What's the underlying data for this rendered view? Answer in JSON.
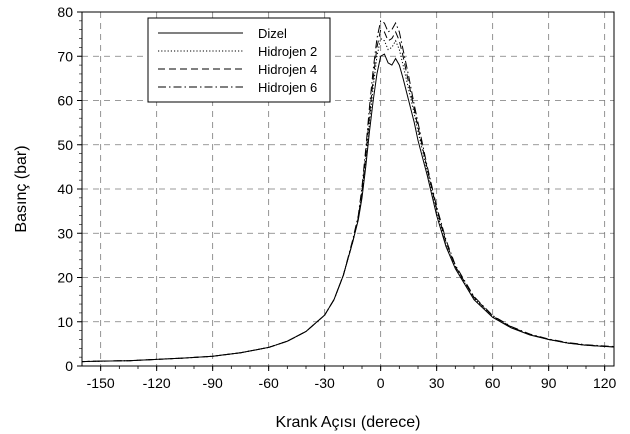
{
  "chart_data": {
    "type": "line",
    "title": "",
    "xlabel": "Krank Açısı (derece)",
    "ylabel": "Basınç (bar)",
    "xlim": [
      -160,
      125
    ],
    "ylim": [
      0,
      80
    ],
    "xticks": [
      -150,
      -120,
      -90,
      -60,
      -30,
      0,
      30,
      60,
      90,
      120
    ],
    "yticks": [
      0,
      10,
      20,
      30,
      40,
      50,
      60,
      70,
      80
    ],
    "grid": true,
    "legend_position": "top-left",
    "series": [
      {
        "name": "Dizel",
        "style": "solid",
        "x": [
          -160,
          -150,
          -135,
          -120,
          -105,
          -90,
          -75,
          -60,
          -50,
          -40,
          -30,
          -25,
          -20,
          -15,
          -12,
          -10,
          -8,
          -6,
          -4,
          -2,
          0,
          2,
          4,
          6,
          8,
          10,
          12,
          15,
          18,
          20,
          25,
          30,
          35,
          40,
          50,
          60,
          70,
          80,
          90,
          100,
          110,
          125
        ],
        "y": [
          1.0,
          1.1,
          1.2,
          1.5,
          1.8,
          2.2,
          3.0,
          4.2,
          5.6,
          7.8,
          11.5,
          15.0,
          20.5,
          28.0,
          33.0,
          38.0,
          45.0,
          53.0,
          60.0,
          66.0,
          70.0,
          70.5,
          68.5,
          68.0,
          69.5,
          68.0,
          65.0,
          60.0,
          55.0,
          51.0,
          43.0,
          34.0,
          27.0,
          22.0,
          15.0,
          11.0,
          8.6,
          7.0,
          6.0,
          5.2,
          4.7,
          4.3
        ]
      },
      {
        "name": "Hidrojen 2",
        "style": "dotted",
        "x": [
          -160,
          -150,
          -135,
          -120,
          -105,
          -90,
          -75,
          -60,
          -50,
          -40,
          -30,
          -25,
          -20,
          -15,
          -12,
          -10,
          -8,
          -6,
          -4,
          -2,
          0,
          2,
          4,
          6,
          8,
          10,
          12,
          15,
          18,
          20,
          25,
          30,
          35,
          40,
          50,
          60,
          70,
          80,
          90,
          100,
          110,
          125
        ],
        "y": [
          1.0,
          1.1,
          1.2,
          1.5,
          1.8,
          2.2,
          3.0,
          4.2,
          5.6,
          7.8,
          11.5,
          15.0,
          20.5,
          28.0,
          33.5,
          39.0,
          46.5,
          55.0,
          63.0,
          70.0,
          74.0,
          73.5,
          71.5,
          72.0,
          73.5,
          71.5,
          68.0,
          62.5,
          57.0,
          53.0,
          44.0,
          35.0,
          27.5,
          22.3,
          15.3,
          11.2,
          8.7,
          7.1,
          6.0,
          5.2,
          4.7,
          4.3
        ]
      },
      {
        "name": "Hidrojen 4",
        "style": "dashed",
        "x": [
          -160,
          -150,
          -135,
          -120,
          -105,
          -90,
          -75,
          -60,
          -50,
          -40,
          -30,
          -25,
          -20,
          -15,
          -12,
          -10,
          -8,
          -6,
          -4,
          -2,
          0,
          2,
          4,
          6,
          8,
          10,
          12,
          15,
          18,
          20,
          25,
          30,
          35,
          40,
          50,
          60,
          70,
          80,
          90,
          100,
          110,
          125
        ],
        "y": [
          1.0,
          1.1,
          1.2,
          1.5,
          1.8,
          2.2,
          3.0,
          4.2,
          5.6,
          7.8,
          11.5,
          15.0,
          20.5,
          28.0,
          33.5,
          39.5,
          47.5,
          56.5,
          65.0,
          72.0,
          76.0,
          75.5,
          73.5,
          74.0,
          75.5,
          73.5,
          70.0,
          64.0,
          58.0,
          54.0,
          44.5,
          35.5,
          28.0,
          22.5,
          15.5,
          11.3,
          8.8,
          7.1,
          6.0,
          5.2,
          4.7,
          4.3
        ]
      },
      {
        "name": "Hidrojen 6",
        "style": "dashdot",
        "x": [
          -160,
          -150,
          -135,
          -120,
          -105,
          -90,
          -75,
          -60,
          -50,
          -40,
          -30,
          -25,
          -20,
          -15,
          -12,
          -10,
          -8,
          -6,
          -4,
          -2,
          0,
          2,
          4,
          6,
          8,
          10,
          12,
          15,
          18,
          20,
          25,
          30,
          35,
          40,
          50,
          60,
          70,
          80,
          90,
          100,
          110,
          125
        ],
        "y": [
          1.0,
          1.1,
          1.2,
          1.5,
          1.8,
          2.2,
          3.0,
          4.2,
          5.6,
          7.8,
          11.5,
          15.0,
          20.5,
          28.5,
          34.0,
          40.5,
          49.0,
          58.5,
          67.0,
          74.0,
          78.0,
          77.5,
          75.5,
          76.0,
          77.5,
          75.5,
          71.5,
          65.5,
          59.0,
          55.0,
          45.0,
          36.0,
          28.5,
          22.8,
          15.7,
          11.4,
          8.9,
          7.2,
          6.1,
          5.3,
          4.8,
          4.4
        ]
      }
    ]
  }
}
